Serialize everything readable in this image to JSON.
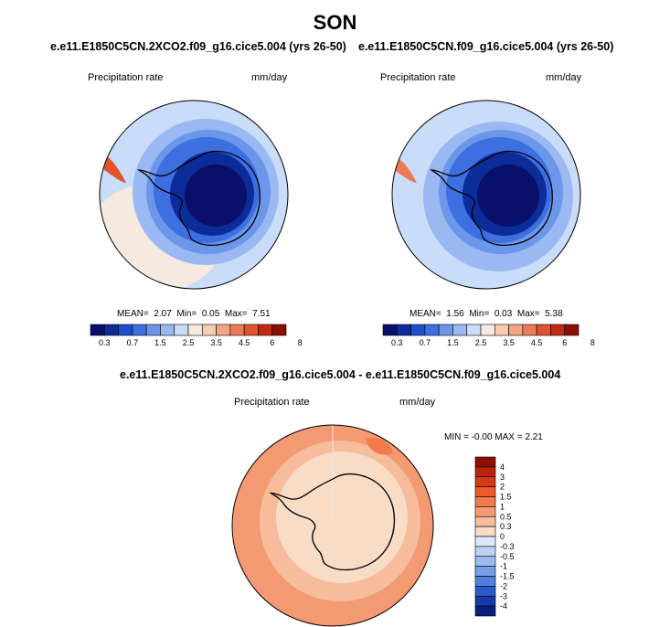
{
  "season": "SON",
  "panels": [
    {
      "run_title": "e.e11.E1850C5CN.2XCO2.f09_g16.cice5.004 (yrs 26-50)",
      "variable": "Precipitation rate",
      "units": "mm/day",
      "mean_label": "MEAN=",
      "mean": "2.07",
      "min_label": "Min=",
      "min": "0.05",
      "max_label": "Max=",
      "max": "7.51"
    },
    {
      "run_title": "e.e11.E1850C5CN.f09_g16.cice5.004 (yrs 26-50)",
      "variable": "Precipitation rate",
      "units": "mm/day",
      "mean_label": "MEAN=",
      "mean": "1.56",
      "min_label": "Min=",
      "min": "0.03",
      "max_label": "Max=",
      "max": "5.38"
    }
  ],
  "diff_panel": {
    "title": "e.e11.E1850C5CN.2XCO2.f09_g16.cice5.004 - e.e11.E1850C5CN.f09_g16.cice5.004",
    "variable": "Precipitation rate",
    "units": "mm/day",
    "minmax_text": "MIN = -0.00 MAX = 2.21"
  },
  "chart_data": [
    {
      "type": "heatmap",
      "projection": "south-polar-stereographic",
      "title": "e.e11.E1850C5CN.2XCO2.f09_g16.cice5.004 (yrs 26-50)",
      "variable": "Precipitation rate",
      "units": "mm/day",
      "mean": 2.07,
      "min": 0.05,
      "max": 7.51,
      "colorbar": {
        "orientation": "horizontal",
        "levels": [
          0.3,
          0.7,
          1.5,
          2.5,
          3.5,
          4.5,
          6,
          8
        ],
        "tick_labels": [
          "0.3",
          "0.7",
          "1.5",
          "2.5",
          "3.5",
          "4.5",
          "6",
          "8"
        ],
        "colors": [
          "#08106b",
          "#0c2c9a",
          "#1d4fd0",
          "#3d6fe0",
          "#6b96ea",
          "#9ab9f2",
          "#c9dcf8",
          "#f5e9e0",
          "#f7cdb2",
          "#f2a482",
          "#ec7a55",
          "#e05230",
          "#c22a14",
          "#8c0f04"
        ]
      }
    },
    {
      "type": "heatmap",
      "projection": "south-polar-stereographic",
      "title": "e.e11.E1850C5CN.f09_g16.cice5.004 (yrs 26-50)",
      "variable": "Precipitation rate",
      "units": "mm/day",
      "mean": 1.56,
      "min": 0.03,
      "max": 5.38,
      "colorbar": {
        "orientation": "horizontal",
        "levels": [
          0.3,
          0.7,
          1.5,
          2.5,
          3.5,
          4.5,
          6,
          8
        ],
        "tick_labels": [
          "0.3",
          "0.7",
          "1.5",
          "2.5",
          "3.5",
          "4.5",
          "6",
          "8"
        ],
        "colors": [
          "#08106b",
          "#0c2c9a",
          "#1d4fd0",
          "#3d6fe0",
          "#6b96ea",
          "#9ab9f2",
          "#c9dcf8",
          "#f5e9e0",
          "#f7cdb2",
          "#f2a482",
          "#ec7a55",
          "#e05230",
          "#c22a14",
          "#8c0f04"
        ]
      }
    },
    {
      "type": "heatmap",
      "projection": "south-polar-stereographic",
      "title": "e.e11.E1850C5CN.2XCO2.f09_g16.cice5.004 - e.e11.E1850C5CN.f09_g16.cice5.004",
      "variable": "Precipitation rate",
      "units": "mm/day",
      "min": -0.0,
      "max": 2.21,
      "colorbar": {
        "orientation": "vertical",
        "levels": [
          -4,
          -3,
          -2,
          -1.5,
          -1,
          -0.5,
          -0.3,
          0,
          0.3,
          0.5,
          1,
          1.5,
          2,
          3,
          4
        ],
        "tick_labels": [
          "4",
          "3",
          "2",
          "1.5",
          "1",
          "0.5",
          "0.3",
          "0",
          "-0.3",
          "-0.5",
          "-1",
          "-1.5",
          "-2",
          "-3",
          "-4"
        ],
        "colors_top_to_bottom": [
          "#8c0f04",
          "#b8230b",
          "#d63a14",
          "#ec5c2a",
          "#f07a4c",
          "#f39a73",
          "#f6bc9c",
          "#f9dcc6",
          "#dce8f8",
          "#bcd2f3",
          "#9bbbee",
          "#759fe6",
          "#4f80db",
          "#2a5cc9",
          "#143aa6",
          "#0a1f7a"
        ]
      }
    }
  ]
}
